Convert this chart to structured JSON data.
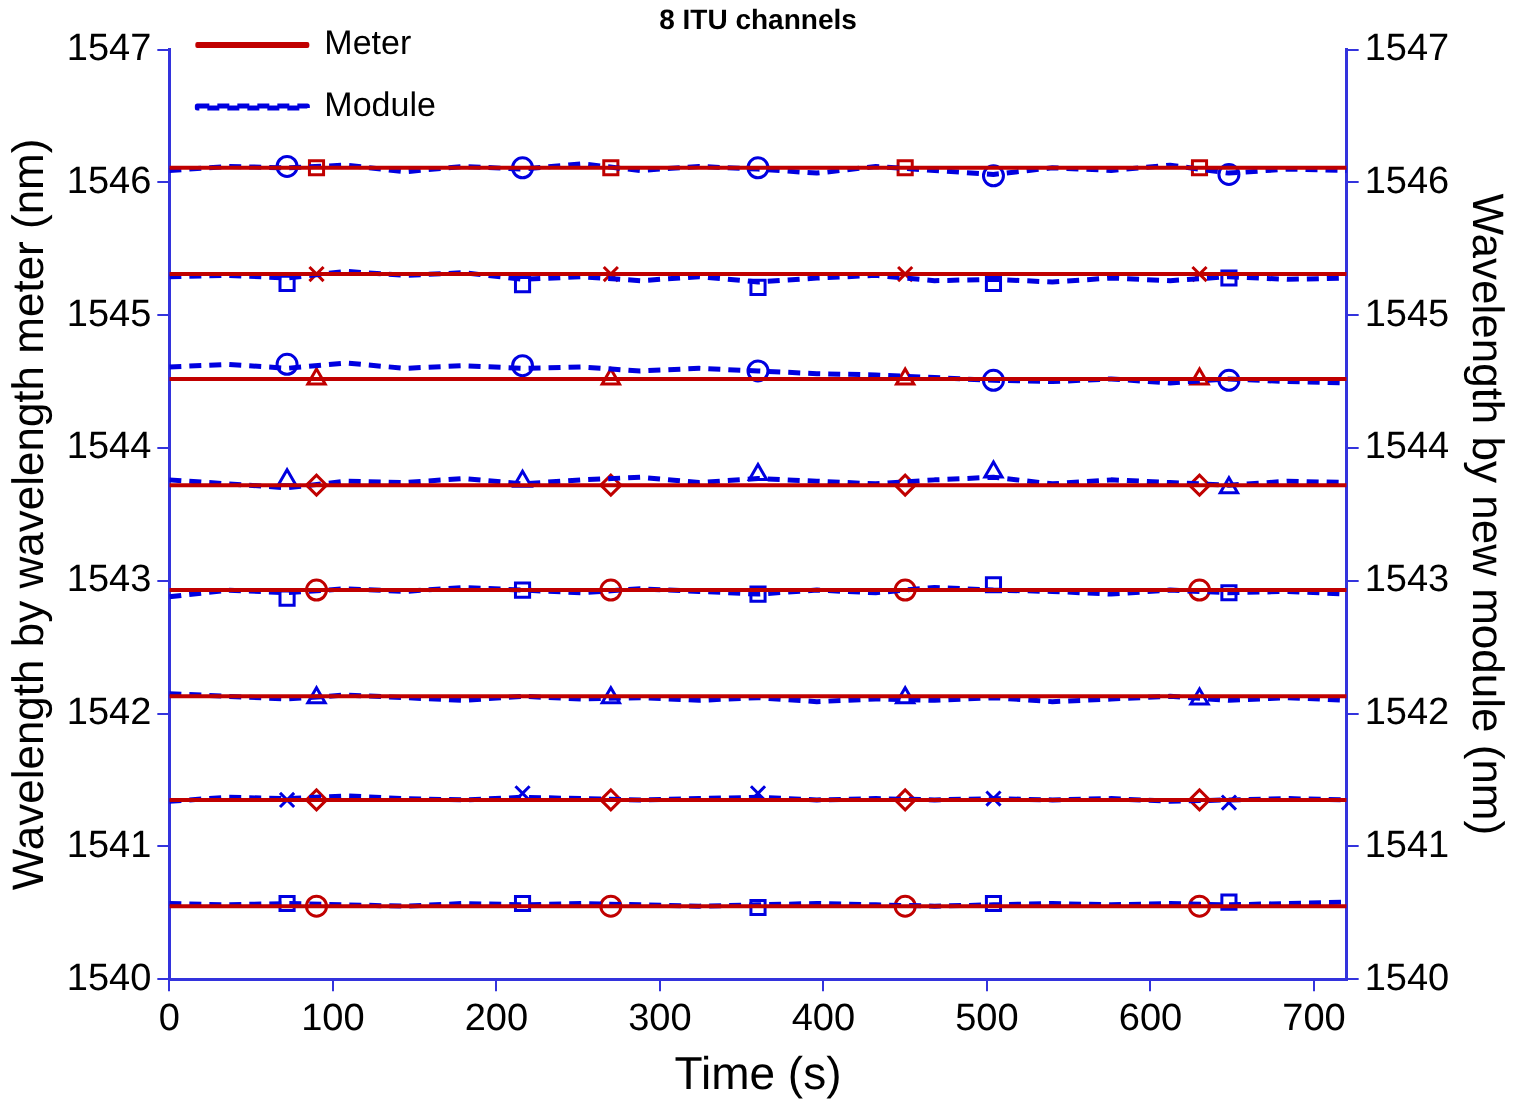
{
  "chart_data": {
    "type": "line",
    "title": "8 ITU channels",
    "xlabel": "Time (s)",
    "ylabel": "Wavelength by wavelength meter (nm)",
    "y2label": "Wavelength by new module (nm)",
    "x": [
      0,
      36,
      72,
      108,
      144,
      180,
      216,
      252,
      288,
      324,
      360,
      396,
      432,
      468,
      504,
      540,
      576,
      612,
      648,
      684,
      720
    ],
    "xlim": [
      0,
      720
    ],
    "xticks": [
      0,
      100,
      200,
      300,
      400,
      500,
      600,
      700
    ],
    "ylim": [
      1540,
      1547
    ],
    "yticks": [
      1540,
      1541,
      1542,
      1543,
      1544,
      1545,
      1546,
      1547
    ],
    "y2lim": [
      1540,
      1547
    ],
    "y2ticks": [
      1540,
      1541,
      1542,
      1543,
      1544,
      1545,
      1546,
      1547
    ],
    "grid": false,
    "legend": "top left",
    "series": [
      {
        "name": "Meter",
        "color": "#c00000",
        "line_style": "solid",
        "marker": "none",
        "x": [
          0,
          720
        ],
        "values": [
          1546.11,
          1546.11
        ]
      },
      {
        "name": "Module",
        "color": "#0000e0",
        "line_style": "dashed",
        "marker": "none",
        "values": [
          1546.09,
          1546.12,
          1546.11,
          1546.13,
          1546.08,
          1546.12,
          1546.1,
          1546.14,
          1546.09,
          1546.12,
          1546.1,
          1546.07,
          1546.12,
          1546.09,
          1546.06,
          1546.11,
          1546.09,
          1546.13,
          1546.07,
          1546.1,
          1546.09
        ]
      },
      {
        "type": "scatter",
        "color": "#c00000",
        "marker": "square",
        "x": [
          90,
          270,
          450,
          630
        ],
        "values": [
          1546.11,
          1546.11,
          1546.11,
          1546.11
        ]
      },
      {
        "type": "scatter",
        "color": "#0000e0",
        "marker": "circle",
        "x": [
          72,
          216,
          360,
          504,
          648
        ],
        "values": [
          1546.12,
          1546.11,
          1546.11,
          1546.05,
          1546.06
        ]
      },
      {
        "color": "#c00000",
        "line_style": "solid",
        "marker": "none",
        "x": [
          0,
          720
        ],
        "values": [
          1545.31,
          1545.31
        ]
      },
      {
        "color": "#0000e0",
        "line_style": "dashed",
        "marker": "none",
        "values": [
          1545.29,
          1545.3,
          1545.28,
          1545.33,
          1545.3,
          1545.32,
          1545.27,
          1545.29,
          1545.26,
          1545.29,
          1545.25,
          1545.28,
          1545.3,
          1545.26,
          1545.27,
          1545.25,
          1545.28,
          1545.26,
          1545.29,
          1545.27,
          1545.28
        ]
      },
      {
        "type": "scatter",
        "color": "#c00000",
        "marker": "cross",
        "x": [
          90,
          270,
          450,
          630
        ],
        "values": [
          1545.31,
          1545.31,
          1545.31,
          1545.31
        ]
      },
      {
        "type": "scatter",
        "color": "#0000e0",
        "marker": "square",
        "x": [
          72,
          216,
          360,
          504,
          648
        ],
        "values": [
          1545.24,
          1545.23,
          1545.21,
          1545.24,
          1545.28
        ]
      },
      {
        "color": "#c00000",
        "line_style": "solid",
        "marker": "none",
        "x": [
          0,
          720
        ],
        "values": [
          1544.52,
          1544.52
        ]
      },
      {
        "color": "#0000e0",
        "line_style": "dashed",
        "marker": "none",
        "values": [
          1544.61,
          1544.63,
          1544.6,
          1544.64,
          1544.6,
          1544.62,
          1544.6,
          1544.61,
          1544.58,
          1544.6,
          1544.58,
          1544.56,
          1544.55,
          1544.53,
          1544.51,
          1544.5,
          1544.52,
          1544.49,
          1544.52,
          1544.5,
          1544.49
        ]
      },
      {
        "type": "scatter",
        "color": "#c00000",
        "marker": "triangle",
        "x": [
          90,
          270,
          450,
          630
        ],
        "values": [
          1544.52,
          1544.52,
          1544.52,
          1544.52
        ]
      },
      {
        "type": "scatter",
        "color": "#0000e0",
        "marker": "circle",
        "x": [
          72,
          216,
          360,
          504,
          648
        ],
        "values": [
          1544.63,
          1544.62,
          1544.58,
          1544.51,
          1544.51
        ]
      },
      {
        "color": "#c00000",
        "line_style": "solid",
        "marker": "none",
        "x": [
          0,
          720
        ],
        "values": [
          1543.72,
          1543.72
        ]
      },
      {
        "color": "#0000e0",
        "line_style": "dashed",
        "marker": "none",
        "values": [
          1543.76,
          1543.73,
          1543.7,
          1543.75,
          1543.74,
          1543.77,
          1543.73,
          1543.76,
          1543.78,
          1543.74,
          1543.77,
          1543.75,
          1543.73,
          1543.76,
          1543.78,
          1543.73,
          1543.76,
          1543.74,
          1543.72,
          1543.75,
          1543.74
        ]
      },
      {
        "type": "scatter",
        "color": "#c00000",
        "marker": "diamond",
        "x": [
          90,
          270,
          450,
          630
        ],
        "values": [
          1543.72,
          1543.72,
          1543.72,
          1543.72
        ]
      },
      {
        "type": "scatter",
        "color": "#0000e0",
        "marker": "triangle",
        "x": [
          72,
          216,
          360,
          504,
          648
        ],
        "values": [
          1543.76,
          1543.75,
          1543.8,
          1543.82,
          1543.7
        ]
      },
      {
        "color": "#c00000",
        "line_style": "solid",
        "marker": "none",
        "x": [
          0,
          720
        ],
        "values": [
          1542.93,
          1542.93
        ]
      },
      {
        "color": "#0000e0",
        "line_style": "dashed",
        "marker": "none",
        "values": [
          1542.88,
          1542.93,
          1542.91,
          1542.94,
          1542.92,
          1542.95,
          1542.93,
          1542.91,
          1542.94,
          1542.92,
          1542.9,
          1542.93,
          1542.91,
          1542.95,
          1542.93,
          1542.92,
          1542.9,
          1542.93,
          1542.91,
          1542.92,
          1542.9
        ]
      },
      {
        "type": "scatter",
        "color": "#c00000",
        "marker": "circle",
        "x": [
          90,
          270,
          450,
          630
        ],
        "values": [
          1542.93,
          1542.93,
          1542.93,
          1542.93
        ]
      },
      {
        "type": "scatter",
        "color": "#0000e0",
        "marker": "square",
        "x": [
          72,
          216,
          360,
          504,
          648
        ],
        "values": [
          1542.87,
          1542.93,
          1542.9,
          1542.97,
          1542.91
        ]
      },
      {
        "color": "#c00000",
        "line_style": "solid",
        "marker": "none",
        "x": [
          0,
          720
        ],
        "values": [
          1542.13,
          1542.13
        ]
      },
      {
        "color": "#0000e0",
        "line_style": "dashed",
        "marker": "none",
        "values": [
          1542.15,
          1542.13,
          1542.11,
          1542.14,
          1542.12,
          1542.1,
          1542.13,
          1542.11,
          1542.12,
          1542.1,
          1542.12,
          1542.09,
          1542.11,
          1542.1,
          1542.12,
          1542.09,
          1542.11,
          1542.13,
          1542.1,
          1542.12,
          1542.1
        ]
      },
      {
        "type": "scatter",
        "color": "#0000e0",
        "marker": "triangle",
        "x": [
          90,
          270,
          450,
          630
        ],
        "values": [
          1542.12,
          1542.12,
          1542.12,
          1542.11
        ]
      },
      {
        "color": "#c00000",
        "line_style": "solid",
        "marker": "none",
        "x": [
          0,
          720
        ],
        "values": [
          1541.35,
          1541.35
        ]
      },
      {
        "color": "#0000e0",
        "line_style": "dashed",
        "marker": "none",
        "values": [
          1541.34,
          1541.37,
          1541.36,
          1541.38,
          1541.36,
          1541.35,
          1541.37,
          1541.36,
          1541.35,
          1541.36,
          1541.37,
          1541.35,
          1541.36,
          1541.35,
          1541.36,
          1541.35,
          1541.36,
          1541.34,
          1541.35,
          1541.36,
          1541.35
        ]
      },
      {
        "type": "scatter",
        "color": "#c00000",
        "marker": "diamond",
        "x": [
          90,
          270,
          450,
          630
        ],
        "values": [
          1541.35,
          1541.35,
          1541.35,
          1541.35
        ]
      },
      {
        "type": "scatter",
        "color": "#0000e0",
        "marker": "cross",
        "x": [
          72,
          216,
          360,
          504,
          648
        ],
        "values": [
          1541.35,
          1541.4,
          1541.4,
          1541.36,
          1541.33
        ]
      },
      {
        "color": "#c00000",
        "line_style": "solid",
        "marker": "none",
        "x": [
          0,
          720
        ],
        "values": [
          1540.55,
          1540.55
        ]
      },
      {
        "color": "#0000e0",
        "line_style": "dashed",
        "marker": "none",
        "values": [
          1540.57,
          1540.56,
          1540.57,
          1540.56,
          1540.55,
          1540.57,
          1540.56,
          1540.57,
          1540.56,
          1540.55,
          1540.56,
          1540.57,
          1540.56,
          1540.55,
          1540.56,
          1540.57,
          1540.56,
          1540.57,
          1540.56,
          1540.57,
          1540.58
        ]
      },
      {
        "type": "scatter",
        "color": "#c00000",
        "marker": "circle",
        "x": [
          90,
          270,
          450,
          630
        ],
        "values": [
          1540.55,
          1540.55,
          1540.55,
          1540.55
        ]
      },
      {
        "type": "scatter",
        "color": "#0000e0",
        "marker": "square",
        "x": [
          72,
          216,
          360,
          504,
          648
        ],
        "values": [
          1540.57,
          1540.57,
          1540.54,
          1540.57,
          1540.58
        ]
      }
    ]
  }
}
